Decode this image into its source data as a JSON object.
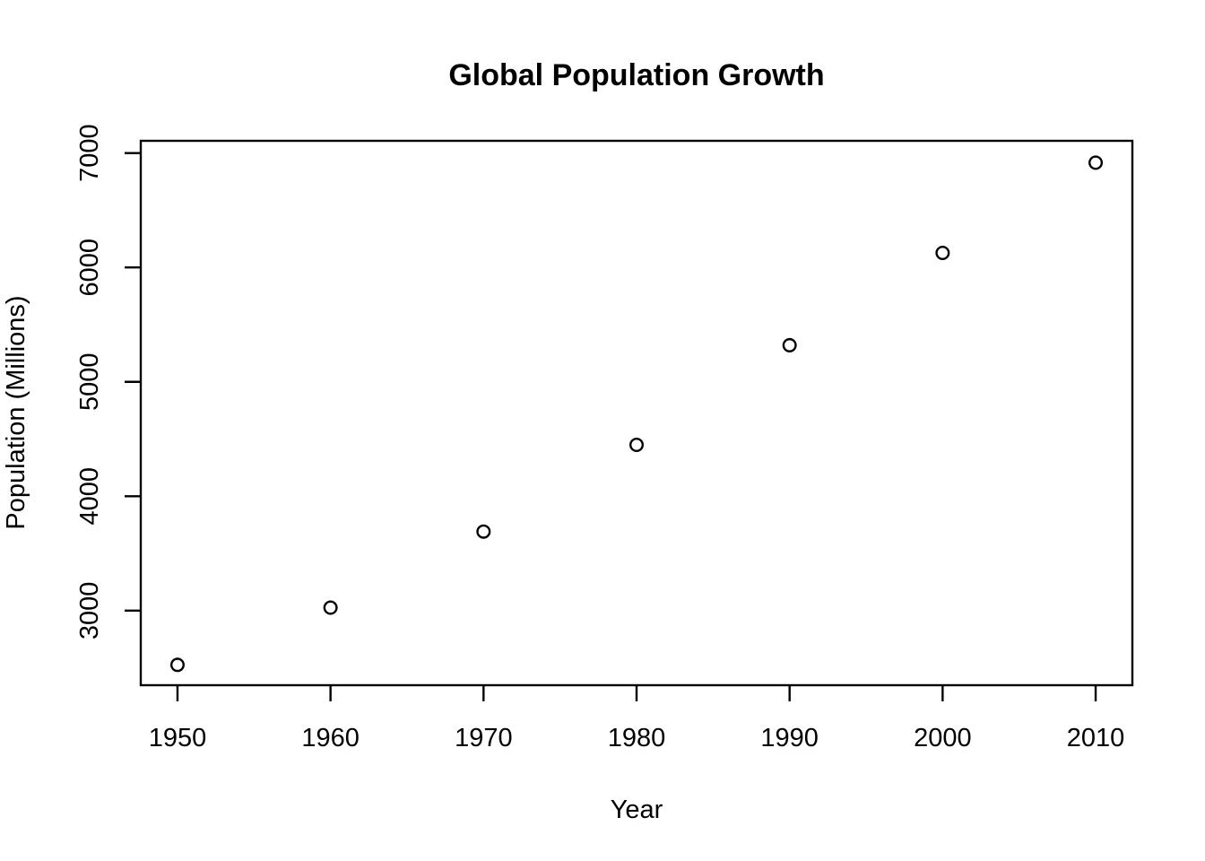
{
  "page": {
    "background_color": "#ffffff",
    "foreground_color": "#000000"
  },
  "chart_data": {
    "type": "scatter",
    "title": "Global Population Growth",
    "xlabel": "Year",
    "ylabel": "Population (Millions)",
    "x": [
      1950,
      1960,
      1970,
      1980,
      1990,
      2000,
      2010
    ],
    "y": [
      2526,
      3026,
      3691,
      4449,
      5320,
      6127,
      6916
    ],
    "series": [
      {
        "name": "population",
        "x": [
          1950,
          1960,
          1970,
          1980,
          1990,
          2000,
          2010
        ],
        "values": [
          2526,
          3026,
          3691,
          4449,
          5320,
          6127,
          6916
        ]
      }
    ],
    "x_ticks": [
      1950,
      1960,
      1970,
      1980,
      1990,
      2000,
      2010
    ],
    "y_ticks": [
      3000,
      4000,
      5000,
      6000,
      7000
    ],
    "xlim": [
      1947.6,
      2012.4
    ],
    "ylim": [
      2348,
      7107
    ],
    "grid": false,
    "legend": false,
    "point_style": "open-circle",
    "marker_color": "#000000",
    "axis_color": "#000000"
  }
}
